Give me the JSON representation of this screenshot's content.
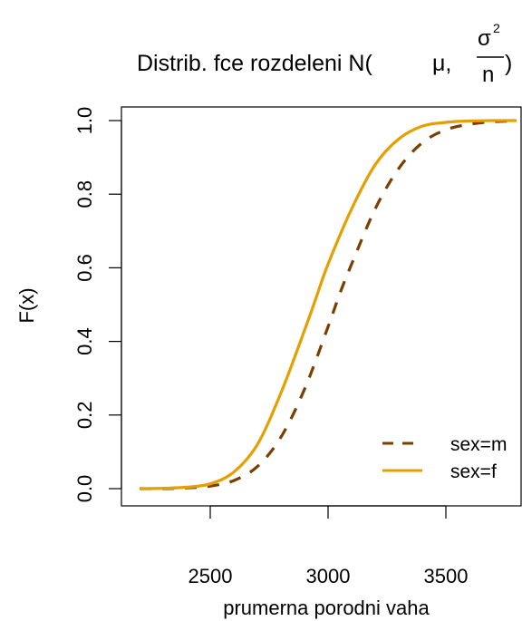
{
  "chart_data": {
    "type": "line",
    "title": {
      "prefix": "Distrib. fce rozdeleni N(",
      "mu": "μ,",
      "numerator": "σ",
      "exponent": "2",
      "denominator": "n",
      "suffix": ")"
    },
    "xlabel": "prumerna porodni vaha",
    "ylabel": "F(x)",
    "xlim": [
      2200,
      3800
    ],
    "ylim": [
      0,
      1
    ],
    "xticks": [
      "2500",
      "3000",
      "3500"
    ],
    "yticks": [
      "0.0",
      "0.2",
      "0.4",
      "0.6",
      "0.8",
      "1.0"
    ],
    "grid": false,
    "legend_position": "bottom-right",
    "series": [
      {
        "name": "sex=m",
        "color": "#7a3f00",
        "style": "dashed",
        "x": [
          2200,
          2300,
          2400,
          2500,
          2600,
          2700,
          2800,
          2900,
          3000,
          3050,
          3100,
          3200,
          3300,
          3400,
          3500,
          3600,
          3700,
          3800
        ],
        "y": [
          0.0,
          0.0,
          0.002,
          0.007,
          0.022,
          0.06,
          0.14,
          0.27,
          0.44,
          0.53,
          0.61,
          0.76,
          0.87,
          0.94,
          0.975,
          0.99,
          0.997,
          0.999
        ]
      },
      {
        "name": "sex=f",
        "color": "#e69f00",
        "style": "solid",
        "x": [
          2200,
          2300,
          2400,
          2500,
          2600,
          2700,
          2800,
          2900,
          2950,
          3000,
          3100,
          3200,
          3300,
          3400,
          3500,
          3600,
          3700,
          3800
        ],
        "y": [
          0.0,
          0.001,
          0.004,
          0.013,
          0.045,
          0.12,
          0.26,
          0.43,
          0.52,
          0.61,
          0.76,
          0.88,
          0.95,
          0.985,
          0.995,
          0.999,
          1.0,
          1.0
        ]
      }
    ]
  }
}
